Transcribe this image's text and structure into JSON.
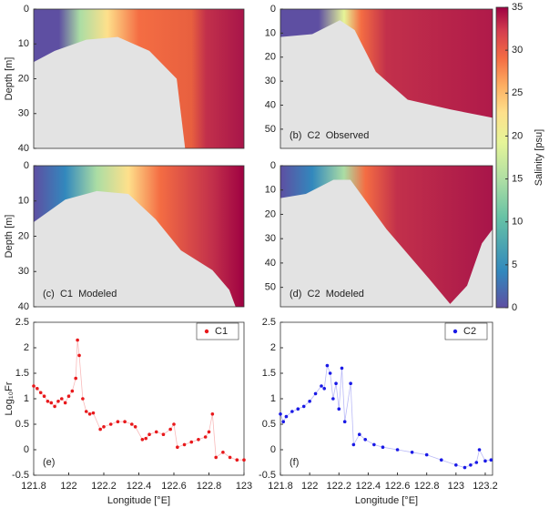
{
  "chart_data": [
    {
      "type": "heatmap",
      "ylabel": "Depth [m]",
      "ylim": [
        0,
        40
      ],
      "yticks": [
        0,
        10,
        20,
        30,
        40
      ]
    },
    {
      "type": "heatmap",
      "panel_label": "(b)  C2  Observed",
      "ylim": [
        0,
        58
      ],
      "yticks": [
        0,
        10,
        20,
        30,
        40,
        50
      ]
    },
    {
      "type": "heatmap",
      "panel_label": "(c)  C1  Modeled",
      "ylabel": "Depth [m]",
      "ylim": [
        0,
        40
      ],
      "yticks": [
        0,
        10,
        20,
        30,
        40
      ]
    },
    {
      "type": "heatmap",
      "panel_label": "(d)  C2  Modeled",
      "ylim": [
        0,
        58
      ],
      "yticks": [
        0,
        10,
        20,
        30,
        40,
        50
      ]
    },
    {
      "type": "line",
      "panel_label": "(e)",
      "ylabel": "Log₁₀Fr",
      "xlabel": "Longitude [°E]",
      "xlim": [
        121.8,
        123
      ],
      "xticks": [
        121.8,
        122,
        122.2,
        122.4,
        122.6,
        122.8,
        123
      ],
      "ylim": [
        -0.5,
        2.5
      ],
      "yticks": [
        -0.5,
        0,
        0.5,
        1,
        1.5,
        2,
        2.5
      ],
      "legend": "top-right",
      "series": [
        {
          "name": "C1",
          "color": "#e8191c",
          "x": [
            121.8,
            121.82,
            121.84,
            121.86,
            121.88,
            121.9,
            121.92,
            121.94,
            121.96,
            121.98,
            122.0,
            122.02,
            122.04,
            122.05,
            122.06,
            122.08,
            122.1,
            122.12,
            122.14,
            122.18,
            122.2,
            122.24,
            122.28,
            122.32,
            122.36,
            122.38,
            122.42,
            122.44,
            122.46,
            122.5,
            122.54,
            122.58,
            122.6,
            122.62,
            122.66,
            122.7,
            122.74,
            122.78,
            122.8,
            122.82,
            122.84,
            122.88,
            122.92,
            122.96,
            123.0
          ],
          "values": [
            1.25,
            1.2,
            1.12,
            1.05,
            0.95,
            0.92,
            0.85,
            0.95,
            1.0,
            0.92,
            1.05,
            1.15,
            1.4,
            2.15,
            1.85,
            1.0,
            0.75,
            0.7,
            0.72,
            0.4,
            0.45,
            0.5,
            0.55,
            0.55,
            0.5,
            0.45,
            0.2,
            0.22,
            0.3,
            0.35,
            0.3,
            0.4,
            0.5,
            0.05,
            0.1,
            0.15,
            0.2,
            0.25,
            0.35,
            0.7,
            -0.15,
            -0.05,
            -0.15,
            -0.2,
            -0.2
          ]
        }
      ]
    },
    {
      "type": "line",
      "panel_label": "(f)",
      "xlabel": "Longitude [°E]",
      "xlim": [
        121.8,
        123.25
      ],
      "xticks": [
        121.8,
        122,
        122.2,
        122.4,
        122.6,
        122.8,
        123,
        123.2
      ],
      "ylim": [
        -0.5,
        2.5
      ],
      "yticks": [
        -0.5,
        0,
        0.5,
        1,
        1.5,
        2,
        2.5
      ],
      "legend": "top-right",
      "series": [
        {
          "name": "C2",
          "color": "#1a1ae6",
          "x": [
            121.8,
            121.82,
            121.84,
            121.88,
            121.92,
            121.96,
            122.0,
            122.04,
            122.08,
            122.1,
            122.12,
            122.14,
            122.16,
            122.18,
            122.2,
            122.22,
            122.24,
            122.28,
            122.3,
            122.34,
            122.38,
            122.44,
            122.5,
            122.6,
            122.7,
            122.8,
            122.9,
            123.0,
            123.06,
            123.1,
            123.14,
            123.16,
            123.2,
            123.24
          ],
          "values": [
            0.7,
            0.55,
            0.65,
            0.75,
            0.8,
            0.85,
            0.95,
            1.1,
            1.25,
            1.2,
            1.65,
            1.5,
            1.0,
            1.3,
            0.8,
            1.6,
            0.55,
            1.3,
            0.1,
            0.3,
            0.2,
            0.1,
            0.05,
            0.0,
            -0.05,
            -0.1,
            -0.2,
            -0.3,
            -0.35,
            -0.3,
            -0.25,
            0.0,
            -0.22,
            -0.2
          ]
        }
      ]
    },
    {
      "type": "colorbar",
      "label": "Salinity [psu]",
      "ylim": [
        0,
        35
      ],
      "yticks": [
        0,
        5,
        10,
        15,
        20,
        25,
        30,
        35
      ]
    }
  ]
}
